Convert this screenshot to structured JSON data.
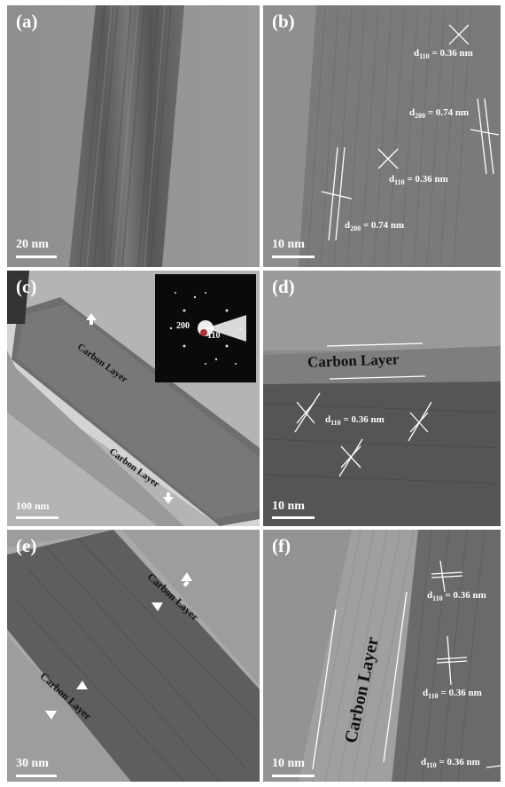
{
  "panels": {
    "a": {
      "label": "(a)",
      "scale": "20 nm"
    },
    "b": {
      "label": "(b)",
      "scale": "10 nm",
      "d1": {
        "pre": "d",
        "sub": "110",
        "post": " = 0.36 nm"
      },
      "d2": {
        "pre": "d",
        "sub": "200",
        "post": " = 0.74 nm"
      },
      "d3": {
        "pre": "d",
        "sub": "110",
        "post": " = 0.36 nm"
      },
      "d4": {
        "pre": "d",
        "sub": "200",
        "post": " = 0.74 nm"
      }
    },
    "c": {
      "label": "(c)",
      "scale": "100 nm",
      "carbon1": "Carbon Layer",
      "carbon2": "Carbon Layer",
      "saed_200": "200",
      "saed_110": "110"
    },
    "d": {
      "label": "(d)",
      "scale": "10 nm",
      "carbon": "Carbon Layer",
      "d1": {
        "pre": "d",
        "sub": "110",
        "post": " = 0.36 nm"
      }
    },
    "e": {
      "label": "(e)",
      "scale": "30 nm",
      "carbon1": "Carbon Layer",
      "carbon2": "Carbon Layer"
    },
    "f": {
      "label": "(f)",
      "scale": "10 nm",
      "carbon": "Carbon Layer",
      "d1": {
        "pre": "d",
        "sub": "110",
        "post": " = 0.36 nm"
      },
      "d2": {
        "pre": "d",
        "sub": "110",
        "post": " = 0.36 nm"
      },
      "d3": {
        "pre": "d",
        "sub": "110",
        "post": " = 0.36 nm"
      }
    }
  }
}
